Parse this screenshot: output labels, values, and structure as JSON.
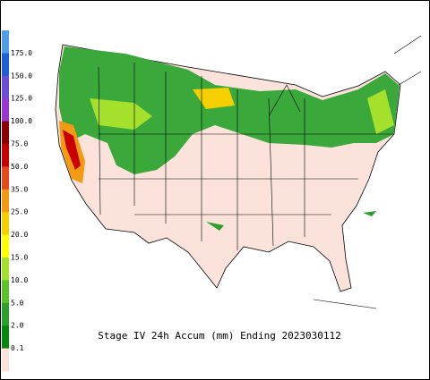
{
  "title": "Stage IV 24h Accum (mm) Ending 2023030112",
  "legend": {
    "colors": [
      "#4f9fe8",
      "#1e5fd8",
      "#6a4fd6",
      "#9a35d0",
      "#8b0000",
      "#c80000",
      "#e8481a",
      "#f39a12",
      "#f5cf00",
      "#ffff00",
      "#a4e02c",
      "#5cc22a",
      "#2ca02c",
      "#0a870a",
      "#fbe2da"
    ],
    "labels": [
      "175.0",
      "150.0",
      "125.0",
      "100.0",
      "75.0",
      "50.0",
      "35.0",
      "25.0",
      "20.0",
      "15.0",
      "10.0",
      "5.0",
      "2.0",
      "0.1"
    ]
  }
}
